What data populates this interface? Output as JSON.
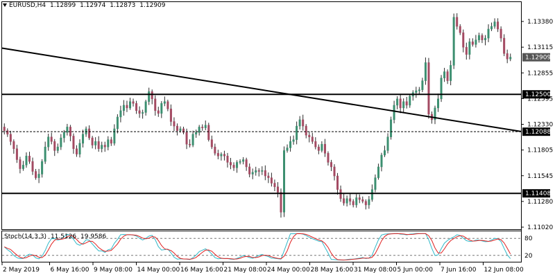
{
  "header": {
    "symbol": "EURUSD,H4",
    "open": "1.12899",
    "high": "1.12974",
    "low": "1.12873",
    "close": "1.12909"
  },
  "stochastic": {
    "name": "Stoch(14,3,3)",
    "main": "11.5126",
    "signal": "19.9586",
    "levels": [
      "80",
      "20"
    ]
  },
  "price_axis_labels": [
    "1.13380",
    "1.13115",
    "1.12855",
    "1.12595",
    "1.12330",
    "1.11805",
    "1.11545",
    "1.11280",
    "1.11020"
  ],
  "time_axis_labels": [
    "2 May 2019",
    "6 May 16:00",
    "9 May 08:00",
    "14 May 00:00",
    "16 May 16:00",
    "21 May 08:00",
    "24 May 00:00",
    "28 May 16:00",
    "31 May 08:00",
    "5 Jun 00:00",
    "7 Jun 16:00",
    "12 Jun 08:00"
  ],
  "colors": {
    "bull": "#3c8f70",
    "bear": "#a34a62",
    "stoch_main": "#2fb8c8",
    "stoch_signal": "#e02020",
    "line": "#000000"
  },
  "chart_data": {
    "type": "candlestick",
    "title": "EURUSD,H4",
    "ylim": [
      1.1102,
      1.1351
    ],
    "horizontal_levels": [
      {
        "value": 1.125,
        "label": "1.12500",
        "style": "solid"
      },
      {
        "value": 1.12088,
        "label": "1.12088",
        "style": "dashed"
      },
      {
        "value": 1.11408,
        "label": "1.11408",
        "style": "solid"
      }
    ],
    "current_price": {
      "value": 1.12909,
      "label": "1.12909"
    },
    "trendline": {
      "from": 1.1301,
      "to": 1.1209
    },
    "closes": [
      1.121,
      1.1206,
      1.1198,
      1.119,
      1.1178,
      1.1168,
      1.1172,
      1.1182,
      1.1176,
      1.1165,
      1.1158,
      1.1162,
      1.1176,
      1.1192,
      1.1203,
      1.1198,
      1.1188,
      1.1192,
      1.1202,
      1.1208,
      1.1214,
      1.1204,
      1.119,
      1.1184,
      1.1196,
      1.1206,
      1.1212,
      1.1202,
      1.1194,
      1.1198,
      1.119,
      1.1194,
      1.1192,
      1.12,
      1.1196,
      1.1212,
      1.1225,
      1.1232,
      1.1238,
      1.1235,
      1.1242,
      1.124,
      1.1232,
      1.1229,
      1.123,
      1.1242,
      1.1253,
      1.1245,
      1.1232,
      1.1229,
      1.124,
      1.1242,
      1.1234,
      1.122,
      1.1215,
      1.121,
      1.1212,
      1.1208,
      1.1195,
      1.1194,
      1.1206,
      1.1208,
      1.1214,
      1.1213,
      1.1216,
      1.12,
      1.1192,
      1.1185,
      1.1182,
      1.1184,
      1.1182,
      1.1175,
      1.1172,
      1.1169,
      1.1175,
      1.1176,
      1.1178,
      1.117,
      1.1162,
      1.1164,
      1.1166,
      1.1165,
      1.1166,
      1.116,
      1.1158,
      1.1152,
      1.1148,
      1.1142,
      1.112,
      1.1188,
      1.1191,
      1.1198,
      1.12,
      1.1215,
      1.1222,
      1.1215,
      1.1205,
      1.1203,
      1.1198,
      1.1192,
      1.1188,
      1.1195,
      1.1185,
      1.1175,
      1.117,
      1.116,
      1.1145,
      1.1135,
      1.113,
      1.1135,
      1.1132,
      1.1128,
      1.1136,
      1.1134,
      1.1132,
      1.1128,
      1.1134,
      1.1145,
      1.1158,
      1.117,
      1.1183,
      1.1188,
      1.1203,
      1.1222,
      1.1238,
      1.1245,
      1.1235,
      1.1242,
      1.1238,
      1.1248,
      1.1252,
      1.1254,
      1.1255,
      1.1265,
      1.1285,
      1.1228,
      1.1222,
      1.1235,
      1.1245,
      1.1268,
      1.1275,
      1.1265,
      1.1282,
      1.1335,
      1.1325,
      1.1318,
      1.1302,
      1.1294,
      1.1308,
      1.1305,
      1.131,
      1.1315,
      1.131,
      1.1312,
      1.1322,
      1.1325,
      1.133,
      1.1322,
      1.1312,
      1.1295,
      1.1289,
      1.1291
    ]
  }
}
